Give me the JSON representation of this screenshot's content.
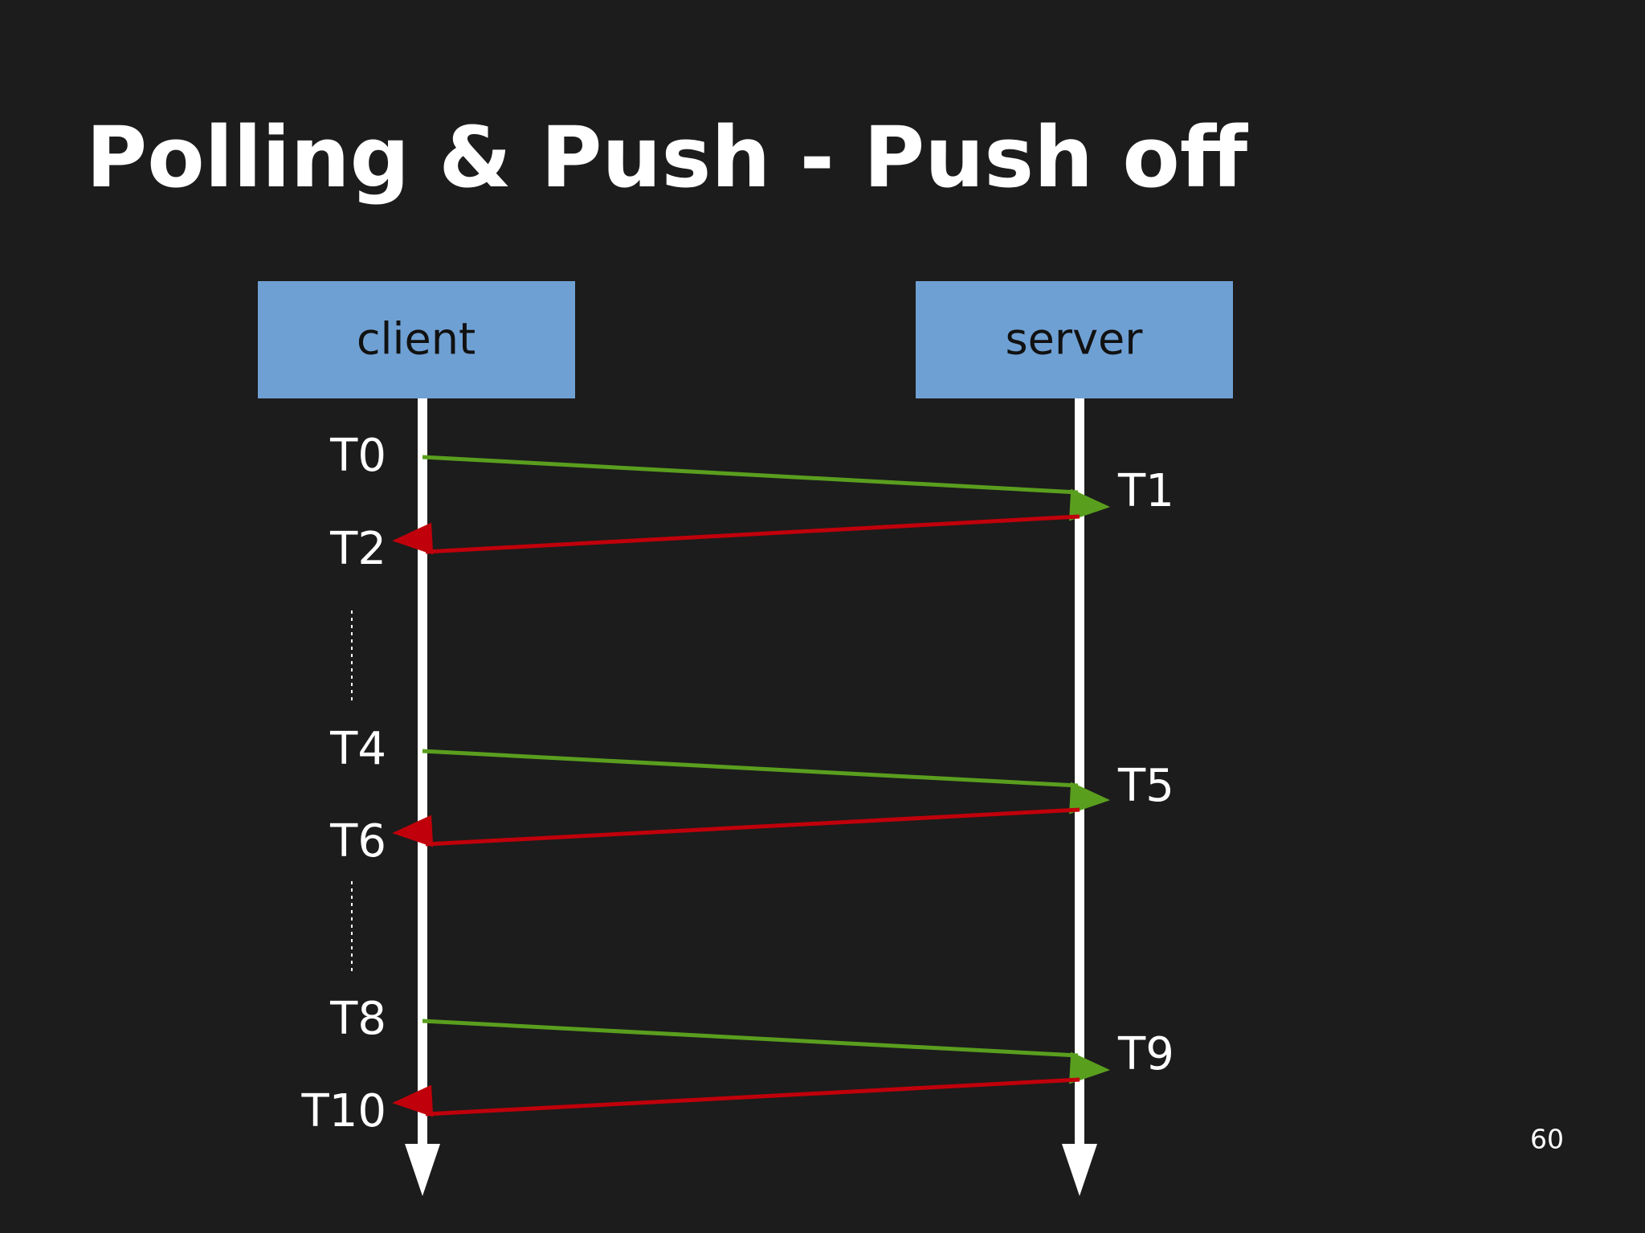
{
  "header": {
    "title": "Polling & Push - Push off"
  },
  "nodes": [
    {
      "label": "client"
    },
    {
      "label": "server"
    }
  ],
  "client_times": [
    "T0",
    "T2",
    "T4",
    "T6",
    "T8",
    "T10"
  ],
  "server_times": [
    "T1",
    "T5",
    "T9"
  ],
  "footer": {
    "page_number": "60"
  }
}
